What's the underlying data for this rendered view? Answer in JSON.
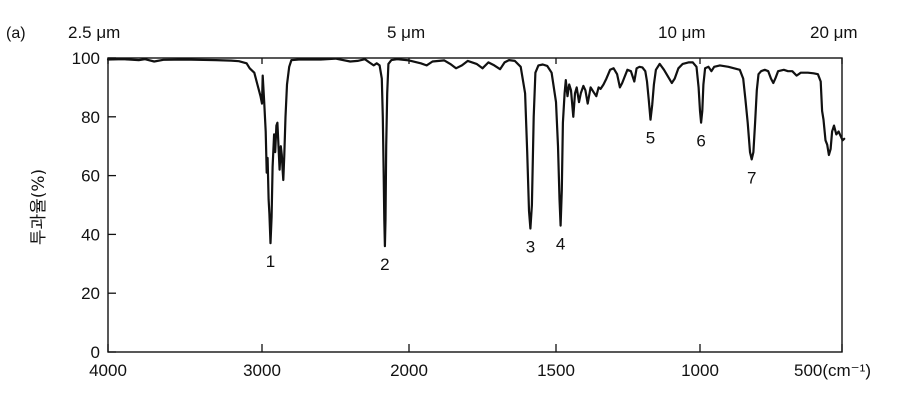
{
  "chart_data": {
    "type": "line",
    "panel_label": "(a)",
    "title": "",
    "xlabel": "",
    "ylabel": "투과율(%)",
    "x_axis": {
      "range": [
        4000,
        450
      ],
      "reversed": true,
      "ticks": [
        4000,
        3000,
        2000,
        1500,
        1000,
        500
      ],
      "tick_labels": [
        "4000",
        "3000",
        "2000",
        "1500",
        "1000",
        "500(cm⁻¹)"
      ]
    },
    "y_axis": {
      "range": [
        0,
        100
      ],
      "ticks": [
        0,
        20,
        40,
        60,
        80,
        100
      ],
      "tick_labels": [
        "0",
        "20",
        "40",
        "60",
        "80",
        "100"
      ]
    },
    "wavelength_labels": [
      {
        "text": "2.5 μm",
        "wavenumber": 4000
      },
      {
        "text": "5 μm",
        "wavenumber": 2000
      },
      {
        "text": "10 μm",
        "wavenumber": 1000
      },
      {
        "text": "20 μm",
        "wavenumber": 500
      }
    ],
    "grid": false,
    "series": [
      {
        "color": "#111111",
        "points": [
          [
            4000,
            99.5
          ],
          [
            3900,
            99.6
          ],
          [
            3800,
            99.3
          ],
          [
            3760,
            99.6
          ],
          [
            3700,
            98.8
          ],
          [
            3640,
            99.4
          ],
          [
            3500,
            99.5
          ],
          [
            3300,
            99.3
          ],
          [
            3200,
            99.1
          ],
          [
            3150,
            98.9
          ],
          [
            3100,
            98.2
          ],
          [
            3080,
            96.5
          ],
          [
            3050,
            95.0
          ],
          [
            3030,
            91.0
          ],
          [
            3010,
            87.0
          ],
          [
            3000,
            84.5
          ],
          [
            2995,
            94.0
          ],
          [
            2985,
            85.0
          ],
          [
            2975,
            75.0
          ],
          [
            2968,
            61.0
          ],
          [
            2962,
            66.0
          ],
          [
            2955,
            52.0
          ],
          [
            2950,
            47.0
          ],
          [
            2942,
            37.0
          ],
          [
            2935,
            46.0
          ],
          [
            2928,
            63.0
          ],
          [
            2918,
            74.0
          ],
          [
            2910,
            68.0
          ],
          [
            2902,
            77.0
          ],
          [
            2895,
            78.0
          ],
          [
            2888,
            70.0
          ],
          [
            2880,
            62.0
          ],
          [
            2872,
            70.0
          ],
          [
            2865,
            67.0
          ],
          [
            2860,
            62.0
          ],
          [
            2855,
            58.5
          ],
          [
            2848,
            67.0
          ],
          [
            2840,
            80.0
          ],
          [
            2830,
            91.0
          ],
          [
            2815,
            97.0
          ],
          [
            2800,
            99.3
          ],
          [
            2750,
            99.5
          ],
          [
            2600,
            99.5
          ],
          [
            2500,
            99.8
          ],
          [
            2400,
            98.8
          ],
          [
            2350,
            99.0
          ],
          [
            2300,
            99.6
          ],
          [
            2270,
            98.5
          ],
          [
            2240,
            97.5
          ],
          [
            2220,
            98.2
          ],
          [
            2200,
            97.5
          ],
          [
            2185,
            93.0
          ],
          [
            2178,
            80.0
          ],
          [
            2172,
            60.0
          ],
          [
            2168,
            45.0
          ],
          [
            2164,
            36.0
          ],
          [
            2160,
            45.0
          ],
          [
            2155,
            70.0
          ],
          [
            2148,
            88.0
          ],
          [
            2140,
            98.0
          ],
          [
            2120,
            99.3
          ],
          [
            2080,
            99.6
          ],
          [
            2000,
            99.2
          ],
          [
            1960,
            98.2
          ],
          [
            1940,
            97.5
          ],
          [
            1920,
            98.8
          ],
          [
            1880,
            99.2
          ],
          [
            1860,
            98.0
          ],
          [
            1840,
            96.5
          ],
          [
            1820,
            97.5
          ],
          [
            1800,
            99.0
          ],
          [
            1770,
            98.0
          ],
          [
            1750,
            96.5
          ],
          [
            1730,
            98.5
          ],
          [
            1710,
            97.5
          ],
          [
            1690,
            96.2
          ],
          [
            1675,
            98.5
          ],
          [
            1660,
            99.3
          ],
          [
            1640,
            99.0
          ],
          [
            1620,
            97.0
          ],
          [
            1605,
            88.0
          ],
          [
            1598,
            68.0
          ],
          [
            1592,
            48.0
          ],
          [
            1587,
            42.0
          ],
          [
            1582,
            50.0
          ],
          [
            1576,
            80.0
          ],
          [
            1570,
            95.0
          ],
          [
            1560,
            97.5
          ],
          [
            1545,
            97.8
          ],
          [
            1530,
            97.3
          ],
          [
            1515,
            95.0
          ],
          [
            1500,
            85.0
          ],
          [
            1493,
            70.0
          ],
          [
            1488,
            52.0
          ],
          [
            1484,
            43.0
          ],
          [
            1480,
            55.0
          ],
          [
            1476,
            78.0
          ],
          [
            1470,
            88.0
          ],
          [
            1466,
            92.5
          ],
          [
            1460,
            87.0
          ],
          [
            1454,
            91.0
          ],
          [
            1448,
            89.0
          ],
          [
            1440,
            80.0
          ],
          [
            1434,
            88.0
          ],
          [
            1428,
            90.0
          ],
          [
            1420,
            85.0
          ],
          [
            1414,
            88.0
          ],
          [
            1405,
            90.5
          ],
          [
            1398,
            89.0
          ],
          [
            1390,
            84.5
          ],
          [
            1380,
            90.0
          ],
          [
            1370,
            88.5
          ],
          [
            1360,
            87.0
          ],
          [
            1352,
            90.0
          ],
          [
            1345,
            89.5
          ],
          [
            1335,
            91.0
          ],
          [
            1325,
            93.0
          ],
          [
            1312,
            96.0
          ],
          [
            1300,
            96.5
          ],
          [
            1288,
            94.5
          ],
          [
            1278,
            90.0
          ],
          [
            1270,
            91.5
          ],
          [
            1262,
            93.5
          ],
          [
            1252,
            96.0
          ],
          [
            1240,
            95.5
          ],
          [
            1228,
            92.0
          ],
          [
            1220,
            96.5
          ],
          [
            1210,
            97.0
          ],
          [
            1200,
            96.8
          ],
          [
            1190,
            95.5
          ],
          [
            1184,
            92.0
          ],
          [
            1178,
            86.0
          ],
          [
            1172,
            79.0
          ],
          [
            1166,
            84.0
          ],
          [
            1160,
            91.0
          ],
          [
            1153,
            96.0
          ],
          [
            1140,
            98.0
          ],
          [
            1125,
            96.0
          ],
          [
            1110,
            93.5
          ],
          [
            1098,
            91.5
          ],
          [
            1088,
            93.0
          ],
          [
            1075,
            96.5
          ],
          [
            1060,
            98.0
          ],
          [
            1040,
            98.5
          ],
          [
            1025,
            98.5
          ],
          [
            1012,
            97.0
          ],
          [
            1005,
            90.0
          ],
          [
            1000,
            82.0
          ],
          [
            996,
            78.0
          ],
          [
            992,
            82.0
          ],
          [
            988,
            91.0
          ],
          [
            982,
            96.5
          ],
          [
            970,
            97.0
          ],
          [
            960,
            95.5
          ],
          [
            950,
            97.0
          ],
          [
            930,
            97.5
          ],
          [
            900,
            97.0
          ],
          [
            880,
            96.5
          ],
          [
            860,
            96.0
          ],
          [
            848,
            93.0
          ],
          [
            840,
            86.0
          ],
          [
            832,
            78.0
          ],
          [
            824,
            68.0
          ],
          [
            818,
            65.5
          ],
          [
            812,
            68.0
          ],
          [
            806,
            78.0
          ],
          [
            800,
            89.0
          ],
          [
            794,
            94.5
          ],
          [
            785,
            95.5
          ],
          [
            772,
            96.0
          ],
          [
            760,
            95.5
          ],
          [
            750,
            93.0
          ],
          [
            742,
            91.5
          ],
          [
            735,
            93.0
          ],
          [
            725,
            95.5
          ],
          [
            705,
            96.0
          ],
          [
            690,
            95.5
          ],
          [
            675,
            95.5
          ],
          [
            660,
            94.0
          ],
          [
            645,
            95.0
          ],
          [
            620,
            95.0
          ],
          [
            600,
            94.8
          ],
          [
            585,
            94.5
          ],
          [
            575,
            92.0
          ],
          [
            570,
            82.0
          ],
          [
            565,
            79.0
          ],
          [
            558,
            72.0
          ],
          [
            552,
            70.5
          ],
          [
            546,
            67.0
          ],
          [
            540,
            69.0
          ],
          [
            535,
            75.0
          ],
          [
            528,
            77.0
          ],
          [
            520,
            74.0
          ],
          [
            512,
            75.0
          ],
          [
            505,
            73.5
          ],
          [
            498,
            72.0
          ],
          [
            492,
            72.5
          ]
        ]
      }
    ],
    "peak_labels": [
      {
        "text": "1",
        "wavenumber": 2942,
        "transmittance": 37
      },
      {
        "text": "2",
        "wavenumber": 2164,
        "transmittance": 36
      },
      {
        "text": "3",
        "wavenumber": 1587,
        "transmittance": 42
      },
      {
        "text": "4",
        "wavenumber": 1484,
        "transmittance": 43
      },
      {
        "text": "5",
        "wavenumber": 1172,
        "transmittance": 79
      },
      {
        "text": "6",
        "wavenumber": 996,
        "transmittance": 78
      },
      {
        "text": "7",
        "wavenumber": 818,
        "transmittance": 65.5
      }
    ]
  }
}
